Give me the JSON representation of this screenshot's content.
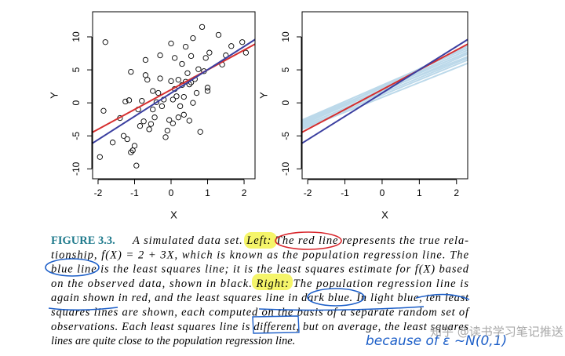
{
  "chart_data": [
    {
      "type": "scatter",
      "xlabel": "X",
      "ylabel": "Y",
      "xlim": [
        -2.15,
        2.3
      ],
      "ylim": [
        -11.5,
        13.8
      ],
      "xticks": [
        -2,
        -1,
        0,
        1,
        2
      ],
      "yticks": [
        -10,
        -5,
        0,
        5,
        10
      ],
      "points": {
        "color": "#000000",
        "x": [
          -1.95,
          -1.8,
          -1.85,
          -1.6,
          -1.4,
          -1.3,
          -1.2,
          -1.25,
          -1.15,
          -1.1,
          -1.05,
          -1.0,
          -1.1,
          -0.95,
          -0.9,
          -0.85,
          -0.8,
          -0.75,
          -0.7,
          -0.7,
          -0.65,
          -0.6,
          -0.55,
          -0.5,
          -0.5,
          -0.45,
          -0.4,
          -0.35,
          -0.3,
          -0.3,
          -0.25,
          -0.2,
          -0.15,
          -0.1,
          -0.05,
          0,
          0,
          0.05,
          0.05,
          0.1,
          0.1,
          0.15,
          0.2,
          0.2,
          0.25,
          0.3,
          0.3,
          0.35,
          0.35,
          0.4,
          0.4,
          0.45,
          0.5,
          0.5,
          0.55,
          0.55,
          0.6,
          0.6,
          0.65,
          0.7,
          0.75,
          0.8,
          0.85,
          0.9,
          0.95,
          1.0,
          1.0,
          1.05,
          1.3,
          1.4,
          1.5,
          1.65,
          2.05,
          1.95
        ],
        "values": [
          -8.2,
          9.2,
          -1.2,
          -6,
          -2.3,
          -5,
          -5.5,
          0.2,
          0.4,
          -7.5,
          -7.2,
          -6.5,
          4.7,
          -9.5,
          -1,
          -3.5,
          0.3,
          -2.8,
          6.5,
          4.2,
          3.5,
          -4,
          -3.2,
          -1,
          1.8,
          -2.2,
          0.1,
          1.5,
          7.2,
          3.7,
          -0.5,
          0.5,
          -5.2,
          -4.2,
          -2.6,
          3.3,
          9,
          -3.1,
          0.5,
          6.8,
          2.1,
          1,
          -2.2,
          3.5,
          -0.5,
          2.7,
          5.9,
          -1.8,
          0.9,
          3.2,
          8.5,
          4.5,
          -2.7,
          2.8,
          3.1,
          7.1,
          9.8,
          0,
          3.6,
          1.5,
          5.1,
          -4.4,
          11.5,
          4.8,
          6.8,
          2.3,
          1.8,
          7.6,
          10.3,
          5.8,
          7.2,
          8.6,
          7.6,
          9.2
        ]
      },
      "lines": [
        {
          "color": "#d62f2f",
          "x": [
            -2.15,
            2.3
          ],
          "values": [
            -4.45,
            8.9
          ]
        },
        {
          "color": "#3b3fa0",
          "x": [
            -2.15,
            2.3
          ],
          "values": [
            -6.1,
            9.6
          ]
        }
      ]
    },
    {
      "type": "line",
      "xlabel": "X",
      "ylabel": "Y",
      "xlim": [
        -2.15,
        2.3
      ],
      "ylim": [
        -11.5,
        13.8
      ],
      "xticks": [
        -2,
        -1,
        0,
        1,
        2
      ],
      "yticks": [
        -10,
        -5,
        0,
        5,
        10
      ],
      "lines": [
        {
          "color": "#bcd9ea",
          "x": [
            -2.15,
            2.3
          ],
          "values": [
            -2.6,
            8.3
          ]
        },
        {
          "color": "#bcd9ea",
          "x": [
            -2.15,
            2.3
          ],
          "values": [
            -3.0,
            8.0
          ]
        },
        {
          "color": "#bcd9ea",
          "x": [
            -2.15,
            2.3
          ],
          "values": [
            -3.3,
            7.7
          ]
        },
        {
          "color": "#bcd9ea",
          "x": [
            -2.15,
            2.3
          ],
          "values": [
            -3.6,
            7.4
          ]
        },
        {
          "color": "#bcd9ea",
          "x": [
            -2.15,
            2.3
          ],
          "values": [
            -2.9,
            7.0
          ]
        },
        {
          "color": "#bcd9ea",
          "x": [
            -2.15,
            2.3
          ],
          "values": [
            -3.8,
            6.5
          ]
        },
        {
          "color": "#bcd9ea",
          "x": [
            -2.15,
            2.3
          ],
          "values": [
            -4.0,
            6.0
          ]
        },
        {
          "color": "#bcd9ea",
          "x": [
            -2.15,
            2.3
          ],
          "values": [
            -3.2,
            8.6
          ]
        },
        {
          "color": "#bcd9ea",
          "x": [
            -2.15,
            2.3
          ],
          "values": [
            -2.7,
            7.6
          ]
        },
        {
          "color": "#bcd9ea",
          "x": [
            -2.15,
            2.3
          ],
          "values": [
            -3.5,
            6.8
          ]
        },
        {
          "color": "#d62f2f",
          "x": [
            -2.15,
            2.3
          ],
          "values": [
            -4.45,
            8.9
          ]
        },
        {
          "color": "#3b3fa0",
          "x": [
            -2.15,
            2.3
          ],
          "values": [
            -6.1,
            9.6
          ]
        }
      ]
    }
  ],
  "caption": {
    "label": "FIGURE 3.3.",
    "lines": [
      "A simulated data set. Left: The red line represents the true rela-",
      "tionship, f(X) = 2 + 3X, which is known as the population regression line. The",
      "blue line is the least squares line; it is the least squares estimate for f(X) based",
      "on the observed data, shown in black. Right: The population regression line is",
      "again shown in red, and the least squares line in dark blue. In light blue, ten least",
      "squares lines are shown, each computed on the basis of a separate random set of",
      "observations. Each least squares line is different, but on average, the least squares",
      "lines are quite close to the population regression line."
    ]
  },
  "annotations": {
    "handwriting": "because of ε ~N(0,1)",
    "watermark": "知乎 @读书学习笔记推送"
  }
}
